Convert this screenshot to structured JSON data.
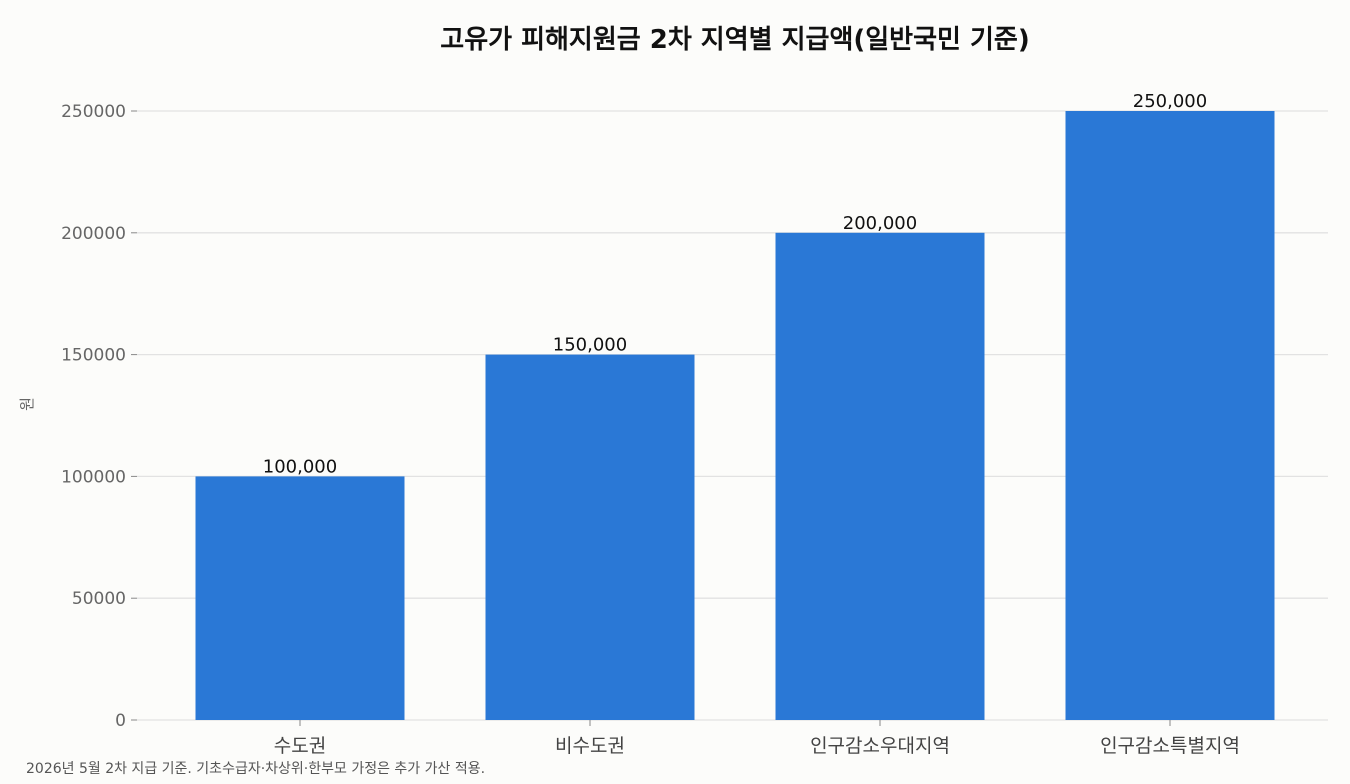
{
  "chart_data": {
    "type": "bar",
    "title": "고유가 피해지원금 2차 지역별 지급액(일반국민 기준)",
    "xlabel": "",
    "ylabel": "원",
    "categories": [
      "수도권",
      "비수도권",
      "인구감소우대지역",
      "인구감소특별지역"
    ],
    "values": [
      100000,
      150000,
      200000,
      250000
    ],
    "value_labels": [
      "100,000",
      "150,000",
      "200,000",
      "250,000"
    ],
    "ylim": [
      0,
      250000
    ],
    "yticks": [
      0,
      50000,
      100000,
      150000,
      200000,
      250000
    ],
    "ytick_labels": [
      "0",
      "50000",
      "100000",
      "150000",
      "200000",
      "250000"
    ],
    "grid": true,
    "colors": {
      "bar": "#2a78d6",
      "grid": "#e2e2e2",
      "background": "#fcfcfa"
    }
  },
  "footnote": "2026년 5월 2차 지급 기준. 기초수급자·차상위·한부모 가정은 추가 가산 적용."
}
